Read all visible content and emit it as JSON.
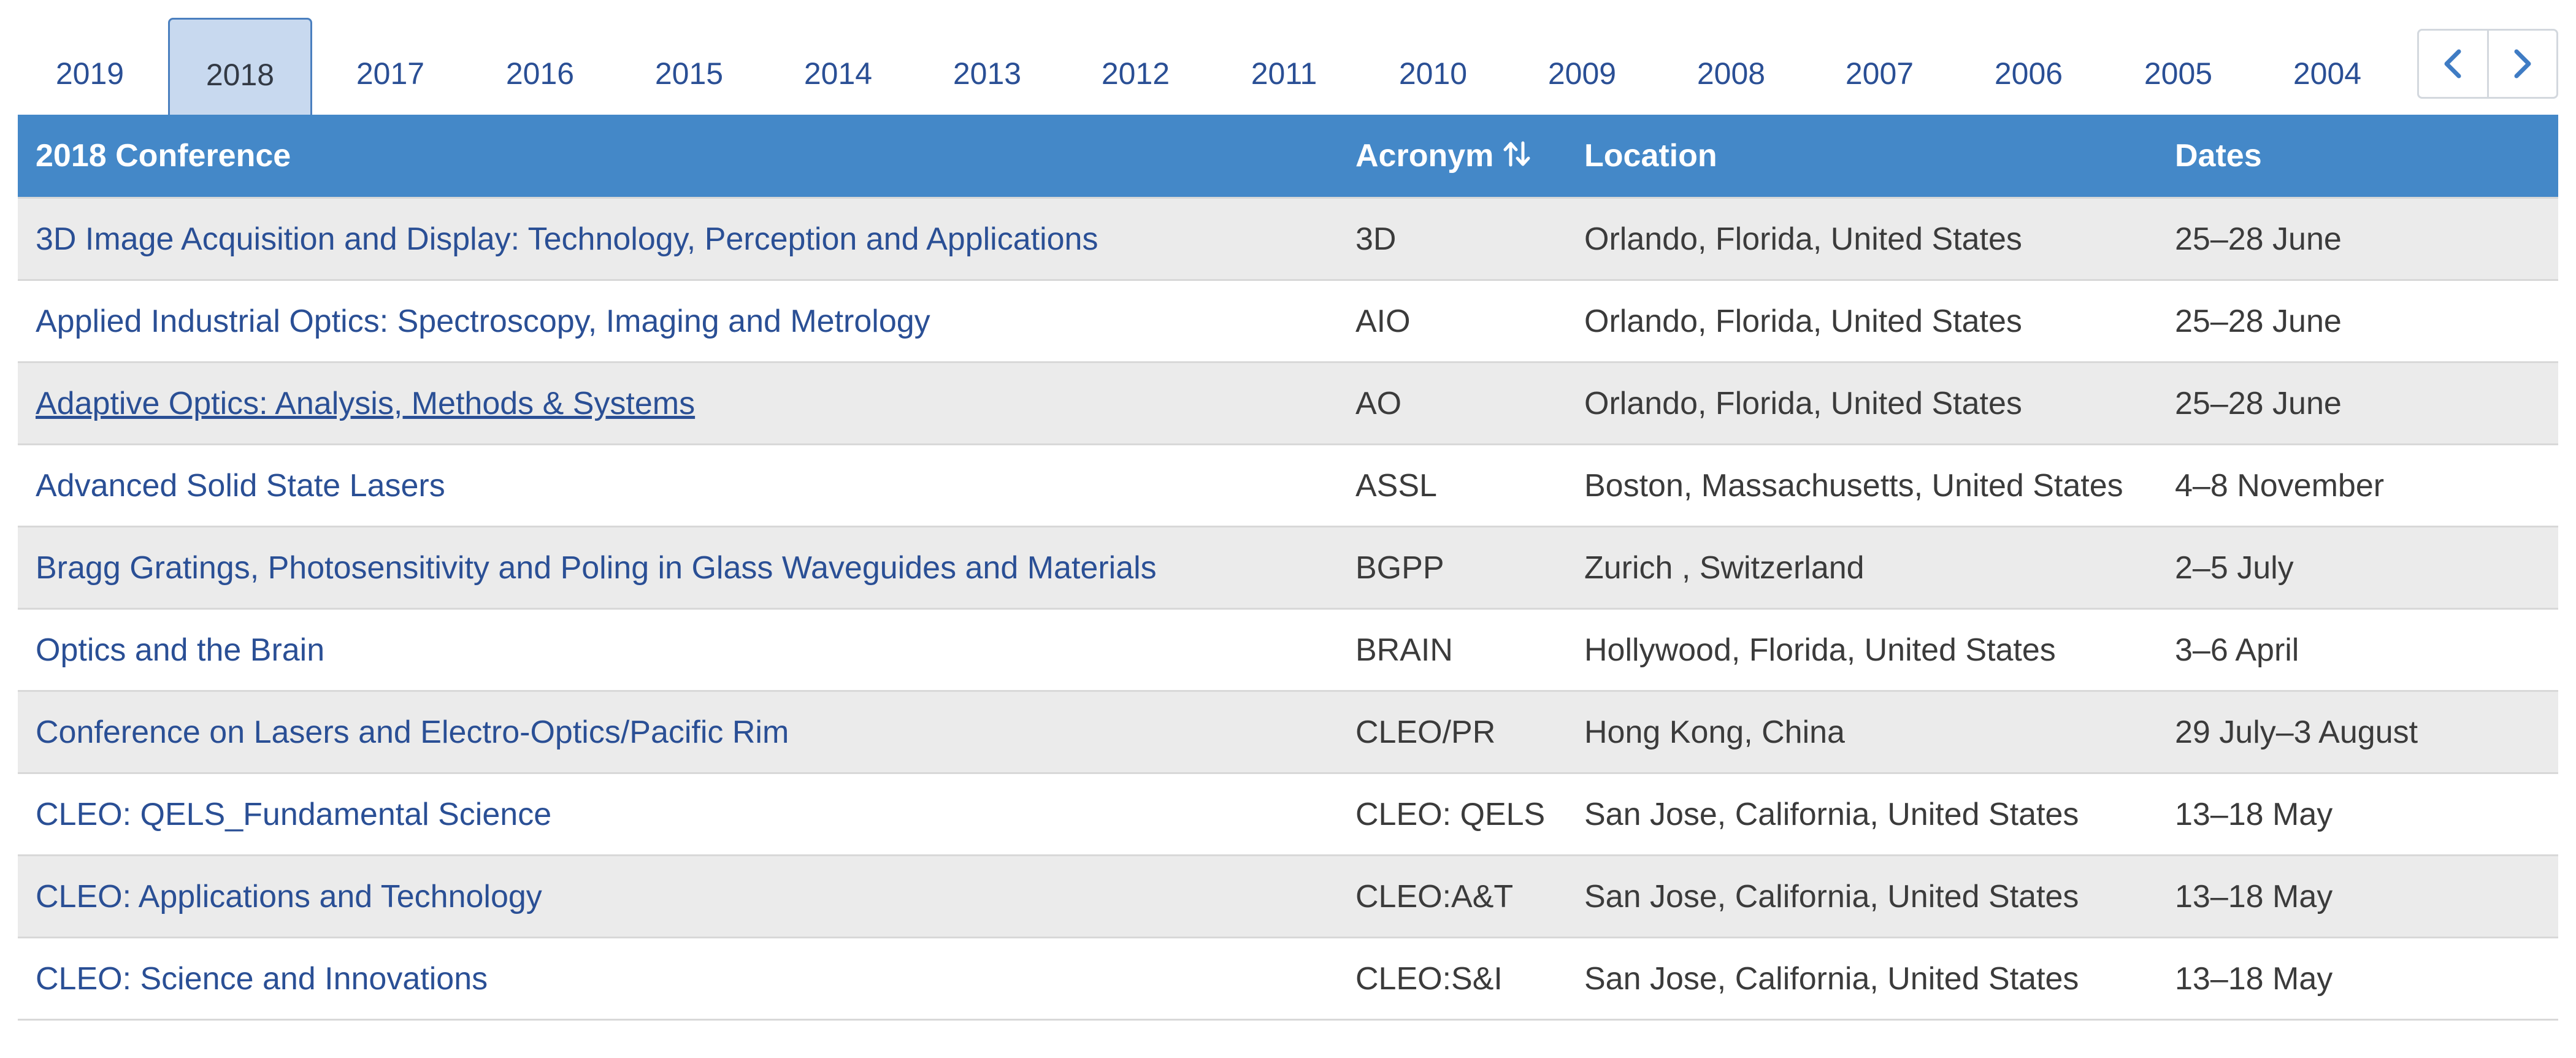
{
  "tabs": {
    "years": [
      "2019",
      "2018",
      "2017",
      "2016",
      "2015",
      "2014",
      "2013",
      "2012",
      "2011",
      "2010",
      "2009",
      "2008",
      "2007",
      "2006",
      "2005",
      "2004"
    ],
    "active_year": "2018",
    "prev_icon": "chevron-left-icon",
    "next_icon": "chevron-right-icon"
  },
  "table": {
    "headers": {
      "conference": "2018 Conference",
      "acronym": "Acronym",
      "location": "Location",
      "dates": "Dates"
    },
    "sort_icon": "sort-arrows-icon",
    "rows": [
      {
        "conference": "3D Image Acquisition and Display: Technology, Perception and Applications",
        "acronym": "3D",
        "location": "Orlando, Florida, United States",
        "dates": "25–28 June"
      },
      {
        "conference": "Applied Industrial Optics: Spectroscopy, Imaging and Metrology",
        "acronym": "AIO",
        "location": "Orlando, Florida, United States",
        "dates": "25–28 June"
      },
      {
        "conference": "Adaptive Optics: Analysis, Methods & Systems",
        "acronym": "AO",
        "location": "Orlando, Florida, United States",
        "dates": "25–28 June"
      },
      {
        "conference": "Advanced Solid State Lasers",
        "acronym": "ASSL",
        "location": "Boston, Massachusetts, United States",
        "dates": "4–8 November"
      },
      {
        "conference": "Bragg Gratings, Photosensitivity and Poling in Glass Waveguides and Materials",
        "acronym": "BGPP",
        "location": "Zurich , Switzerland",
        "dates": "2–5 July"
      },
      {
        "conference": "Optics and the Brain",
        "acronym": "BRAIN",
        "location": "Hollywood, Florida, United States",
        "dates": "3–6 April"
      },
      {
        "conference": "Conference on Lasers and Electro-Optics/Pacific Rim",
        "acronym": "CLEO/PR",
        "location": "Hong Kong, China",
        "dates": "29 July–3 August"
      },
      {
        "conference": "CLEO: QELS_Fundamental Science",
        "acronym": "CLEO: QELS",
        "location": "San Jose, California, United States",
        "dates": "13–18 May"
      },
      {
        "conference": "CLEO: Applications and Technology",
        "acronym": "CLEO:A&T",
        "location": "San Jose, California, United States",
        "dates": "13–18 May"
      },
      {
        "conference": "CLEO: Science and Innovations",
        "acronym": "CLEO:S&I",
        "location": "San Jose, California, United States",
        "dates": "13–18 May"
      }
    ]
  },
  "colors": {
    "header_bg": "#4488c8",
    "link": "#2a4f95",
    "active_tab_bg": "#c8d9ef",
    "stripe": "#ebebeb"
  }
}
